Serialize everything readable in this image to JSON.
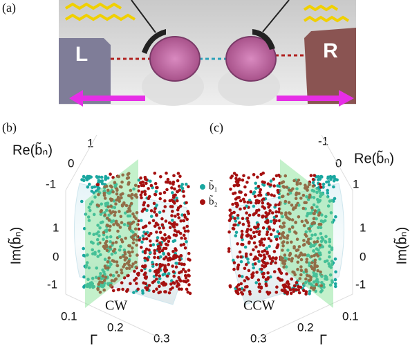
{
  "panel_a": {
    "label": "(a)",
    "left_block": "L",
    "right_block": "R"
  },
  "panel_b": {
    "label": "(b)",
    "re_axis": "Re(b̃ₙ)",
    "re_ticks": [
      "1",
      "0",
      "-1"
    ],
    "im_axis": "Im(b̃ₙ)",
    "im_ticks": [
      "1",
      "0",
      "-1"
    ],
    "gamma_axis": "Γ",
    "gamma_ticks": [
      "0.1",
      "0.2",
      "0.3"
    ],
    "direction": "CW"
  },
  "panel_c": {
    "label": "(c)",
    "re_axis": "Re(b̃ₙ)",
    "re_ticks": [
      "-1",
      "0",
      "1"
    ],
    "im_axis": "Im(b̃ₙ)",
    "im_ticks": [
      "1",
      "0",
      "-1"
    ],
    "gamma_axis": "Γ",
    "gamma_ticks": [
      "0.3",
      "0.2",
      "0.1"
    ],
    "direction": "CCW"
  },
  "legend": [
    "b̃₁",
    "b̃₂"
  ]
}
